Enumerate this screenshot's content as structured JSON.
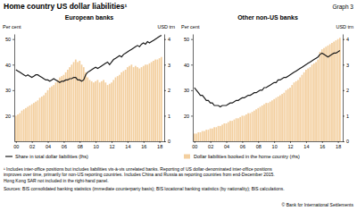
{
  "figure": {
    "title": "Home country US dollar liabilities¹",
    "label": "Graph 3",
    "footnote": [
      "¹  Includes inter-office positions but includes liabilities vis-à-vis unrelated banks. Reporting of US dollar-denominated inter-office positions",
      "improves over time, primarily for non-US reporting countries. Includes China and Russia as reporting countries from end-December 2015.",
      "Hong Kong SAR not included in the right-hand panel."
    ],
    "sources": "Sources: BIS consolidated banking statistics (immediate counterparty basis); BIS locational banking statistics (by nationality); BIS calculations.",
    "copyright": "© Bank for International Settlements"
  },
  "chart_data": [
    {
      "type": "combo",
      "title": "European banks",
      "y_label": "Per cent",
      "y2_label": "USD trn",
      "grid": false,
      "x": [
        2000,
        2000.25,
        2000.5,
        2000.75,
        2001,
        2001.25,
        2001.5,
        2001.75,
        2002,
        2002.25,
        2002.5,
        2002.75,
        2003,
        2003.25,
        2003.5,
        2003.75,
        2004,
        2004.25,
        2004.5,
        2004.75,
        2005,
        2005.25,
        2005.5,
        2005.75,
        2006,
        2006.25,
        2006.5,
        2006.75,
        2007,
        2007.25,
        2007.5,
        2007.75,
        2008,
        2008.25,
        2008.5,
        2008.75,
        2009,
        2009.25,
        2009.5,
        2009.75,
        2010,
        2010.25,
        2010.5,
        2010.75,
        2011,
        2011.25,
        2011.5,
        2011.75,
        2012,
        2012.25,
        2012.5,
        2012.75,
        2013,
        2013.25,
        2013.5,
        2013.75,
        2014,
        2014.25,
        2014.5,
        2014.75,
        2015,
        2015.25,
        2015.5,
        2015.75,
        2016,
        2016.25,
        2016.5,
        2016.75,
        2017,
        2017.25,
        2017.5,
        2017.75,
        2018,
        2018.25
      ],
      "xlim": [
        1999.8,
        2018.6
      ],
      "xticks": [
        {
          "value": 2000,
          "label": "00"
        },
        {
          "value": 2002,
          "label": "02"
        },
        {
          "value": 2004,
          "label": "04"
        },
        {
          "value": 2006,
          "label": "06"
        },
        {
          "value": 2008,
          "label": "08"
        },
        {
          "value": 2010,
          "label": "10"
        },
        {
          "value": 2012,
          "label": "12"
        },
        {
          "value": 2014,
          "label": "14"
        },
        {
          "value": 2016,
          "label": "16"
        },
        {
          "value": 2018,
          "label": "18"
        }
      ],
      "ylim": [
        10,
        52
      ],
      "yticks": [
        20,
        30,
        40,
        50
      ],
      "y2lim": [
        0,
        4.2
      ],
      "y2ticks": [
        0,
        1,
        2,
        3,
        4
      ],
      "series": [
        {
          "name": "Share in total dollar liabilities (lhs)",
          "type": "line",
          "color": "#1a1a1a",
          "values": [
            38,
            37.5,
            37,
            36.5,
            36,
            35.5,
            36,
            35.5,
            35,
            35.5,
            36,
            36,
            35.5,
            35,
            34.5,
            34,
            34,
            33.5,
            34,
            34.5,
            34,
            33.5,
            33,
            33.5,
            33.5,
            34,
            34,
            34.5,
            34.5,
            35,
            35,
            34,
            34,
            33.5,
            34,
            36,
            37,
            37.5,
            38,
            38.5,
            39,
            38.5,
            39,
            39.5,
            40,
            40.5,
            41,
            40,
            41,
            42,
            42.5,
            43,
            43.5,
            43,
            44,
            44.5,
            45,
            45.5,
            46,
            46.5,
            47,
            47.5,
            47,
            48,
            48.5,
            48,
            49,
            48.5,
            49,
            49.5,
            50,
            50.5,
            51,
            51.5
          ]
        },
        {
          "type": "bar",
          "axis": "y2",
          "color": "#f3cf9f",
          "values": [
            1.0,
            1.05,
            1.1,
            1.2,
            1.25,
            1.3,
            1.35,
            1.4,
            1.45,
            1.5,
            1.55,
            1.6,
            1.7,
            1.75,
            1.8,
            1.9,
            2.0,
            2.1,
            2.15,
            2.2,
            2.3,
            2.4,
            2.5,
            2.55,
            2.6,
            2.7,
            2.8,
            2.9,
            3.0,
            3.1,
            3.2,
            3.1,
            3.15,
            3.0,
            2.9,
            2.7,
            2.5,
            2.4,
            2.35,
            2.3,
            2.35,
            2.4,
            2.3,
            2.35,
            2.4,
            2.3,
            2.2,
            2.25,
            2.3,
            2.4,
            2.5,
            2.55,
            2.6,
            2.7,
            2.75,
            2.8,
            2.9,
            2.95,
            3.0,
            2.9,
            2.95,
            2.9,
            2.85,
            2.9,
            2.95,
            3.0,
            3.0,
            3.05,
            3.1,
            3.15,
            3.2,
            3.2,
            3.25,
            3.3
          ]
        }
      ]
    },
    {
      "type": "combo",
      "title": "Other non-US banks",
      "y_label": "Per cent",
      "y2_label": "USD trn",
      "grid": false,
      "x": [
        2000,
        2000.25,
        2000.5,
        2000.75,
        2001,
        2001.25,
        2001.5,
        2001.75,
        2002,
        2002.25,
        2002.5,
        2002.75,
        2003,
        2003.25,
        2003.5,
        2003.75,
        2004,
        2004.25,
        2004.5,
        2004.75,
        2005,
        2005.25,
        2005.5,
        2005.75,
        2006,
        2006.25,
        2006.5,
        2006.75,
        2007,
        2007.25,
        2007.5,
        2007.75,
        2008,
        2008.25,
        2008.5,
        2008.75,
        2009,
        2009.25,
        2009.5,
        2009.75,
        2010,
        2010.25,
        2010.5,
        2010.75,
        2011,
        2011.25,
        2011.5,
        2011.75,
        2012,
        2012.25,
        2012.5,
        2012.75,
        2013,
        2013.25,
        2013.5,
        2013.75,
        2014,
        2014.25,
        2014.5,
        2014.75,
        2015,
        2015.25,
        2015.5,
        2015.75,
        2016,
        2016.25,
        2016.5,
        2016.75,
        2017,
        2017.25,
        2017.5,
        2017.75,
        2018,
        2018.25
      ],
      "xlim": [
        1999.8,
        2018.6
      ],
      "xticks": [
        {
          "value": 2000,
          "label": "00"
        },
        {
          "value": 2002,
          "label": "02"
        },
        {
          "value": 2004,
          "label": "04"
        },
        {
          "value": 2006,
          "label": "06"
        },
        {
          "value": 2008,
          "label": "08"
        },
        {
          "value": 2010,
          "label": "10"
        },
        {
          "value": 2012,
          "label": "12"
        },
        {
          "value": 2014,
          "label": "14"
        },
        {
          "value": 2016,
          "label": "16"
        },
        {
          "value": 2018,
          "label": "18"
        }
      ],
      "ylim": [
        10,
        52
      ],
      "yticks": [
        20,
        30,
        40,
        50
      ],
      "y2lim": [
        0,
        4.2
      ],
      "y2ticks": [
        0,
        1,
        2,
        3,
        4
      ],
      "series": [
        {
          "type": "line",
          "color": "#1a1a1a",
          "values": [
            31,
            30,
            29,
            28,
            28,
            27,
            26,
            26,
            25,
            25,
            24,
            24,
            24,
            23.5,
            24,
            24,
            24,
            24.5,
            25,
            25,
            25.5,
            26,
            26,
            26.5,
            27,
            27,
            27.5,
            28,
            28,
            28.5,
            29,
            29,
            29.5,
            30,
            30,
            31,
            31,
            31.5,
            32,
            32.5,
            33,
            33,
            34,
            34,
            34.5,
            35,
            35,
            35.5,
            36,
            36.5,
            37,
            37.5,
            38,
            38.5,
            39,
            39.5,
            40,
            40.5,
            41,
            41.5,
            42,
            42.5,
            43,
            44,
            44.5,
            44,
            43.5,
            43,
            43.5,
            44,
            44.5,
            44.5,
            45,
            45.5
          ]
        },
        {
          "name": "Dollar liabilities booked in the home country (rhs)",
          "type": "bar",
          "axis": "y2",
          "color": "#f3cf9f",
          "values": [
            0.3,
            0.3,
            0.35,
            0.35,
            0.4,
            0.4,
            0.45,
            0.45,
            0.5,
            0.5,
            0.55,
            0.55,
            0.6,
            0.6,
            0.65,
            0.7,
            0.7,
            0.75,
            0.8,
            0.8,
            0.85,
            0.9,
            0.9,
            0.95,
            1.0,
            1.0,
            1.05,
            1.1,
            1.1,
            1.15,
            1.2,
            1.25,
            1.3,
            1.35,
            1.4,
            1.45,
            1.5,
            1.5,
            1.55,
            1.6,
            1.65,
            1.7,
            1.75,
            1.8,
            1.85,
            1.9,
            2.0,
            2.05,
            2.1,
            2.2,
            2.3,
            2.35,
            2.4,
            2.5,
            2.6,
            2.7,
            2.8,
            2.85,
            2.9,
            3.0,
            3.05,
            3.1,
            3.2,
            3.5,
            3.6,
            3.65,
            3.7,
            3.75,
            3.8,
            3.85,
            3.9,
            3.95,
            4.0,
            4.05
          ]
        }
      ]
    }
  ]
}
